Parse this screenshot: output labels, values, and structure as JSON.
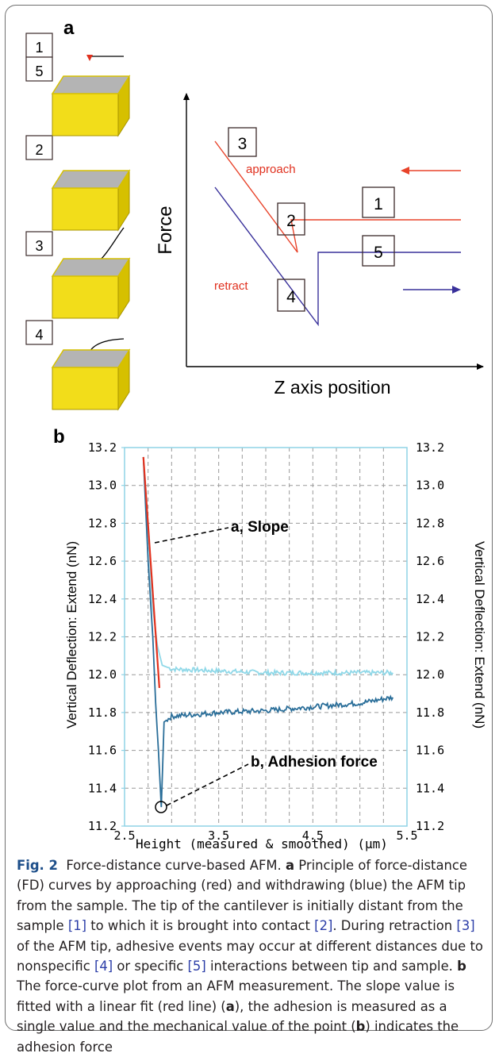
{
  "panel_a": {
    "letter": "a",
    "step_boxes": [
      "1",
      "5",
      "2",
      "3",
      "4"
    ],
    "curve_boxes": [
      "3",
      "2",
      "1",
      "5",
      "4"
    ],
    "approach_label": "approach",
    "retract_label": "retract",
    "y_axis_label": "Force",
    "x_axis_label": "Z axis position",
    "colors": {
      "approach": "#e8432a",
      "retract": "#38309a",
      "block_top": "#b4b4b4",
      "block_side": "#e0cc00",
      "block_front": "#f2dd1a"
    }
  },
  "panel_b": {
    "letter": "b",
    "y_ticks": [
      "13.2",
      "13.0",
      "12.8",
      "12.6",
      "12.4",
      "12.2",
      "12.0",
      "11.8",
      "11.6",
      "11.4",
      "11.2"
    ],
    "x_ticks": [
      "2.5",
      "3.5",
      "4.5",
      "5.5"
    ],
    "y_label_left": "Vertical Deflection: Extend (nN)",
    "y_label_right": "Vertical Deflection: Extend (nN)",
    "x_label": "Height (measured & smoothed) (µm)",
    "annotation_slope": "a, Slope",
    "annotation_adhesion": "b, Adhesion force",
    "colors": {
      "approach_curve": "#8fd8e8",
      "retract_curve": "#2a6e99",
      "fit_line": "#e4321e",
      "axis_frame": "#8fd3e6",
      "grid": "#9a9a9a"
    }
  },
  "chart_data": {
    "type": "line",
    "xlim": [
      2.5,
      5.5
    ],
    "ylim": [
      11.2,
      13.2
    ],
    "grid": true,
    "series": [
      {
        "x": [
          2.7,
          2.75,
          2.8,
          2.85,
          2.9,
          3.0,
          3.5,
          4.0,
          4.5,
          5.0,
          5.35
        ],
        "y": [
          13.15,
          12.75,
          12.35,
          12.15,
          12.05,
          12.03,
          12.02,
          12.01,
          12.01,
          12.01,
          12.01
        ]
      },
      {
        "x": [
          2.7,
          2.75,
          2.8,
          2.83,
          2.86,
          2.89,
          2.92,
          3.0,
          3.5,
          4.0,
          4.5,
          5.0,
          5.35
        ],
        "y": [
          13.15,
          12.6,
          12.2,
          11.85,
          11.6,
          11.3,
          11.75,
          11.78,
          11.8,
          11.81,
          11.83,
          11.85,
          11.88
        ]
      },
      {
        "x": [
          2.7,
          2.87
        ],
        "y": [
          13.15,
          11.93
        ]
      }
    ]
  },
  "caption": {
    "fig_label": "Fig. 2",
    "title": "Force-distance curve-based AFM.",
    "p1": "a",
    "p2": "Principle of force-distance (FD) curves by approaching (red) and withdrawing (blue) the AFM tip from the sample. The tip of the cantilever is initially distant from the sample",
    "r1": "[1]",
    "p3": "to which it is brought into contact",
    "r2": "[2]",
    "p4": ". During retraction",
    "r3": "[3]",
    "p5": "of the AFM tip, adhesive events may occur at different distances due to nonspecific",
    "r4": "[4]",
    "p6": "or specific",
    "r5": "[5]",
    "p7": "interactions between tip and sample.",
    "p8": "b",
    "p9": "The force-curve plot from an AFM measurement. The slope value is fitted with a linear fit (red line) (",
    "p10": "a",
    "p11": "), the adhesion is measured as a single value and the mechanical value of the point (",
    "p12": "b",
    "p13": ") indicates the adhesion force"
  }
}
